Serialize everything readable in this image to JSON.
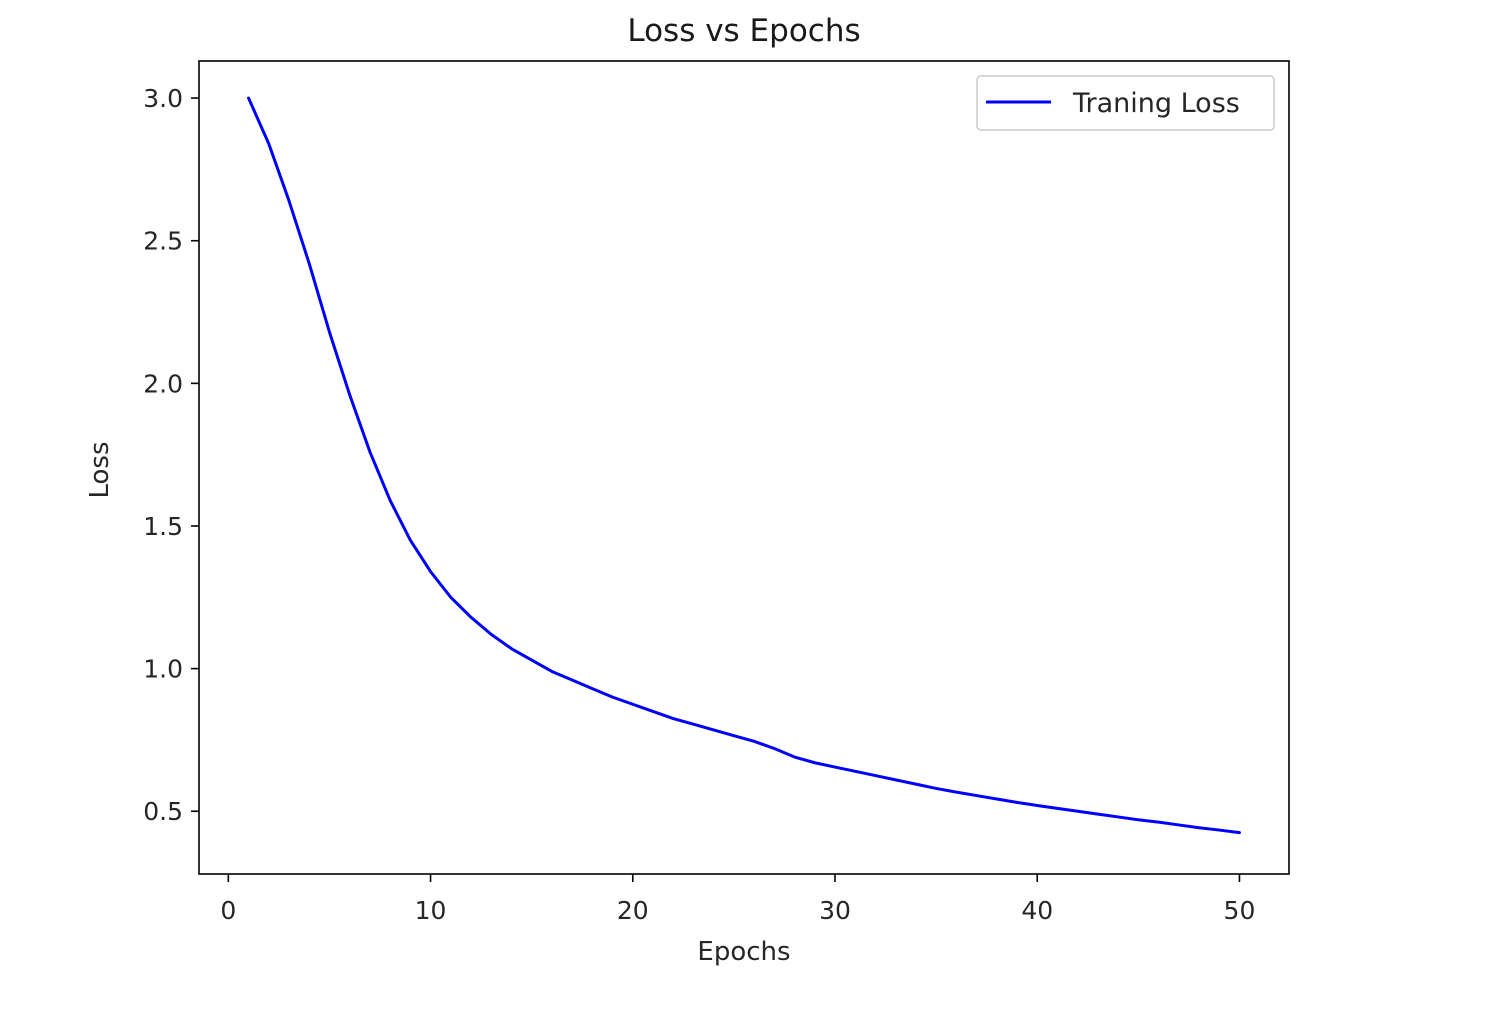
{
  "chart_data": {
    "type": "line",
    "title": "Loss vs Epochs",
    "xlabel": "Epochs",
    "ylabel": "Loss",
    "xlim": [
      -1.45,
      52.45
    ],
    "ylim": [
      0.28,
      3.13
    ],
    "xticks": [
      0,
      10,
      20,
      30,
      40,
      50
    ],
    "xtick_labels": [
      "0",
      "10",
      "20",
      "30",
      "40",
      "50"
    ],
    "yticks": [
      0.5,
      1.0,
      1.5,
      2.0,
      2.5,
      3.0
    ],
    "ytick_labels": [
      "0.5",
      "1.0",
      "1.5",
      "2.0",
      "2.5",
      "3.0"
    ],
    "grid": false,
    "legend_position": "top-right",
    "series": [
      {
        "name": "Traning Loss",
        "color": "#0000ff",
        "x": [
          1,
          2,
          3,
          4,
          5,
          6,
          7,
          8,
          9,
          10,
          11,
          12,
          13,
          14,
          15,
          16,
          17,
          18,
          19,
          20,
          21,
          22,
          23,
          24,
          25,
          26,
          27,
          28,
          29,
          30,
          31,
          32,
          33,
          34,
          35,
          36,
          37,
          38,
          39,
          40,
          41,
          42,
          43,
          44,
          45,
          46,
          47,
          48,
          49,
          50
        ],
        "y": [
          3.0,
          2.84,
          2.64,
          2.42,
          2.18,
          1.96,
          1.76,
          1.59,
          1.45,
          1.34,
          1.25,
          1.18,
          1.12,
          1.07,
          1.03,
          0.99,
          0.96,
          0.93,
          0.9,
          0.875,
          0.85,
          0.825,
          0.805,
          0.785,
          0.765,
          0.745,
          0.72,
          0.69,
          0.67,
          0.655,
          0.64,
          0.625,
          0.61,
          0.595,
          0.58,
          0.567,
          0.555,
          0.543,
          0.531,
          0.52,
          0.51,
          0.5,
          0.49,
          0.48,
          0.47,
          0.462,
          0.452,
          0.442,
          0.434,
          0.425
        ]
      }
    ]
  }
}
